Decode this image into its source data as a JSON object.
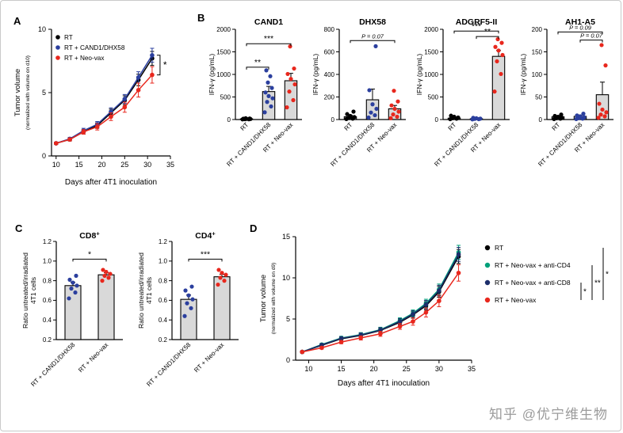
{
  "panels": {
    "a": "A",
    "b": "B",
    "c": "C",
    "d": "D"
  },
  "watermark": "知乎 @优宁维生物",
  "chart_data": [
    {
      "id": "A",
      "type": "line",
      "xlabel": "Days after 4T1 inoculation",
      "ylabel": "Tumor volume",
      "ylabel_sub": "(normalized with volume on d10)",
      "xlim": [
        9,
        35
      ],
      "ylim": [
        0,
        10
      ],
      "xticks": [
        10,
        15,
        20,
        25,
        30,
        35
      ],
      "yticks": [
        0,
        5,
        10
      ],
      "x": [
        10,
        13,
        16,
        19,
        22,
        25,
        28,
        31
      ],
      "series": [
        {
          "name": "RT",
          "color": "#000000",
          "values": [
            1.0,
            1.3,
            1.9,
            2.4,
            3.4,
            4.4,
            6.0,
            7.7
          ],
          "err": [
            0.08,
            0.12,
            0.18,
            0.22,
            0.3,
            0.35,
            0.45,
            0.55
          ]
        },
        {
          "name": "RT + CAND1/DHX58",
          "color": "#2b3f9e",
          "values": [
            1.0,
            1.35,
            2.0,
            2.5,
            3.5,
            4.5,
            6.2,
            7.95
          ],
          "err": [
            0.08,
            0.12,
            0.18,
            0.22,
            0.3,
            0.35,
            0.45,
            0.55
          ]
        },
        {
          "name": "RT + Neo-vax",
          "color": "#e8271d",
          "values": [
            1.0,
            1.3,
            1.9,
            2.3,
            3.1,
            3.85,
            5.2,
            6.4
          ],
          "err": [
            0.08,
            0.12,
            0.18,
            0.25,
            0.3,
            0.4,
            0.55,
            0.65
          ]
        }
      ],
      "sig_right": [
        {
          "label": "*",
          "series_a": 1,
          "series_b": 2
        }
      ]
    },
    {
      "id": "B1",
      "type": "bar",
      "title": "CAND1",
      "ylabel": "IFN-γ (pg/mL)",
      "ylim": [
        0,
        2000
      ],
      "yticks": [
        0,
        500,
        1000,
        1500,
        2000
      ],
      "categories": [
        "RT",
        "RT + CAND1/DHX58",
        "RT + Neo-vax"
      ],
      "values": [
        15,
        620,
        860
      ],
      "errors": [
        8,
        115,
        165
      ],
      "dot_colors": [
        "#000000",
        "#2b3f9e",
        "#e8271d"
      ],
      "dots": [
        [
          3,
          6,
          9,
          12,
          15,
          18,
          22,
          28
        ],
        [
          160,
          290,
          390,
          470,
          520,
          600,
          700,
          820,
          960,
          1090
        ],
        [
          270,
          430,
          620,
          780,
          900,
          1010,
          1130,
          1620
        ]
      ],
      "sig": [
        {
          "from": 0,
          "to": 1,
          "label": "**",
          "y": 1160
        },
        {
          "from": 0,
          "to": 2,
          "label": "***",
          "y": 1680
        }
      ]
    },
    {
      "id": "B2",
      "type": "bar",
      "title": "DHX58",
      "ylabel": "IFN-γ (pg/mL)",
      "ylim": [
        0,
        800
      ],
      "yticks": [
        0,
        200,
        400,
        600,
        800
      ],
      "categories": [
        "RT",
        "RT + CAND1/DHX58",
        "RT + Neo-vax"
      ],
      "values": [
        25,
        175,
        95
      ],
      "errors": [
        12,
        95,
        30
      ],
      "dot_colors": [
        "#000000",
        "#2b3f9e",
        "#e8271d"
      ],
      "dots": [
        [
          4,
          8,
          14,
          22,
          32,
          48,
          70
        ],
        [
          18,
          38,
          62,
          95,
          135,
          260,
          650
        ],
        [
          12,
          25,
          45,
          70,
          95,
          125,
          160,
          255
        ]
      ],
      "sig": [
        {
          "from": 0,
          "to": 2,
          "label": "P = 0.07",
          "y": 700
        }
      ]
    },
    {
      "id": "B3",
      "type": "bar",
      "title": "ADGRF5-II",
      "ylabel": "IFN-γ (pg/mL)",
      "ylim": [
        0,
        2000
      ],
      "yticks": [
        0,
        500,
        1000,
        1500,
        2000
      ],
      "categories": [
        "RT",
        "RT + CAND1/DHX58",
        "RT + Neo-vax"
      ],
      "values": [
        30,
        18,
        1400
      ],
      "errors": [
        15,
        8,
        130
      ],
      "dot_colors": [
        "#000000",
        "#2b3f9e",
        "#e8271d"
      ],
      "dots": [
        [
          8,
          18,
          30,
          45,
          62,
          85
        ],
        [
          4,
          9,
          14,
          20,
          28,
          38
        ],
        [
          620,
          1010,
          1290,
          1430,
          1530,
          1610,
          1700,
          1780
        ]
      ],
      "sig": [
        {
          "from": 1,
          "to": 2,
          "label": "**",
          "y": 1840
        },
        {
          "from": 0,
          "to": 2,
          "label": "***",
          "y": 1960
        }
      ]
    },
    {
      "id": "B4",
      "type": "bar",
      "title": "AH1-A5",
      "ylabel": "IFN-γ (pg/mL)",
      "ylim": [
        0,
        200
      ],
      "yticks": [
        0,
        50,
        100,
        150,
        200
      ],
      "categories": [
        "RT",
        "RT + CAND1/DHX58",
        "RT + Neo-vax"
      ],
      "values": [
        6,
        7,
        55
      ],
      "errors": [
        3,
        3,
        28
      ],
      "dot_colors": [
        "#000000",
        "#2b3f9e",
        "#e8271d"
      ],
      "dots": [
        [
          1,
          2,
          3,
          4,
          6,
          8,
          11
        ],
        [
          1,
          2,
          3,
          5,
          7,
          9,
          13
        ],
        [
          4,
          7,
          11,
          16,
          22,
          35,
          120,
          165
        ]
      ],
      "sig": [
        {
          "from": 1,
          "to": 2,
          "label": "P = 0.07",
          "y": 176
        },
        {
          "from": 0,
          "to": 2,
          "label": "P = 0.09",
          "y": 194
        }
      ]
    },
    {
      "id": "C1",
      "type": "bar",
      "title": "CD8",
      "title_sup": "+",
      "ylabel": "Ratio untreated/irradiated",
      "ylabel2": "4T1 cells",
      "ylim": [
        0.2,
        1.2
      ],
      "yticks": [
        0.2,
        0.4,
        0.6,
        0.8,
        1.0,
        1.2
      ],
      "tick_dec": 1,
      "categories": [
        "RT + CAND1/DHX58",
        "RT + Neo-vax"
      ],
      "values": [
        0.75,
        0.86
      ],
      "errors": [
        0.035,
        0.02
      ],
      "dot_colors": [
        "#2b3f9e",
        "#e8271d"
      ],
      "dots": [
        [
          0.62,
          0.68,
          0.72,
          0.75,
          0.78,
          0.81,
          0.85
        ],
        [
          0.8,
          0.83,
          0.85,
          0.87,
          0.89,
          0.91
        ]
      ],
      "sig": [
        {
          "from": 0,
          "to": 1,
          "label": "*",
          "y": 1.02
        }
      ]
    },
    {
      "id": "C2",
      "type": "bar",
      "title": "CD4",
      "title_sup": "+",
      "ylabel": "Ratio untreated/irradiated",
      "ylabel2": "4T1 cells",
      "ylim": [
        0.2,
        1.2
      ],
      "yticks": [
        0.2,
        0.4,
        0.6,
        0.8,
        1.0,
        1.2
      ],
      "tick_dec": 1,
      "categories": [
        "RT + CAND1/DHX58",
        "RT + Neo-vax"
      ],
      "values": [
        0.61,
        0.84
      ],
      "errors": [
        0.045,
        0.025
      ],
      "dot_colors": [
        "#2b3f9e",
        "#e8271d"
      ],
      "dots": [
        [
          0.44,
          0.52,
          0.57,
          0.61,
          0.65,
          0.7,
          0.74
        ],
        [
          0.76,
          0.8,
          0.83,
          0.86,
          0.88,
          0.91
        ]
      ],
      "sig": [
        {
          "from": 0,
          "to": 1,
          "label": "***",
          "y": 1.02
        }
      ]
    },
    {
      "id": "D",
      "type": "line",
      "xlabel": "Days after 4T1 inoculation",
      "ylabel": "Tumor volume",
      "ylabel_sub": "(normalized with volume on d9)",
      "xlim": [
        8,
        35
      ],
      "ylim": [
        0,
        15
      ],
      "xticks": [
        10,
        15,
        20,
        25,
        30,
        35
      ],
      "yticks": [
        0,
        5,
        10,
        15
      ],
      "x": [
        9,
        12,
        15,
        18,
        21,
        24,
        26,
        28,
        30,
        33
      ],
      "series": [
        {
          "name": "RT",
          "color": "#000000",
          "values": [
            1.0,
            1.8,
            2.6,
            3.0,
            3.6,
            4.6,
            5.5,
            6.6,
            8.3,
            12.6
          ],
          "err": [
            0.1,
            0.15,
            0.2,
            0.25,
            0.3,
            0.35,
            0.4,
            0.5,
            0.65,
            0.85
          ]
        },
        {
          "name": "RT + Neo-vax + anti-CD4",
          "color": "#00a07a",
          "values": [
            1.0,
            1.9,
            2.7,
            3.1,
            3.7,
            4.8,
            5.7,
            6.9,
            8.6,
            13.1
          ],
          "err": [
            0.1,
            0.15,
            0.2,
            0.25,
            0.3,
            0.35,
            0.4,
            0.5,
            0.65,
            0.85
          ]
        },
        {
          "name": "RT + Neo-vax + anti-CD8",
          "color": "#1c2e6b",
          "values": [
            1.0,
            1.85,
            2.65,
            3.05,
            3.65,
            4.7,
            5.6,
            6.75,
            8.45,
            12.85
          ],
          "err": [
            0.1,
            0.15,
            0.2,
            0.25,
            0.3,
            0.35,
            0.4,
            0.5,
            0.65,
            0.85
          ]
        },
        {
          "name": "RT + Neo-vax",
          "color": "#e8271d",
          "values": [
            1.0,
            1.5,
            2.2,
            2.7,
            3.2,
            4.1,
            4.7,
            5.8,
            7.2,
            10.6
          ],
          "err": [
            0.1,
            0.15,
            0.2,
            0.25,
            0.3,
            0.35,
            0.45,
            0.55,
            0.7,
            1.0
          ]
        }
      ],
      "legend_sig": [
        {
          "from": 2,
          "to": 3,
          "label": "*"
        },
        {
          "from": 1,
          "to": 3,
          "label": "**"
        },
        {
          "from": 0,
          "to": 3,
          "label": "*"
        }
      ]
    }
  ]
}
